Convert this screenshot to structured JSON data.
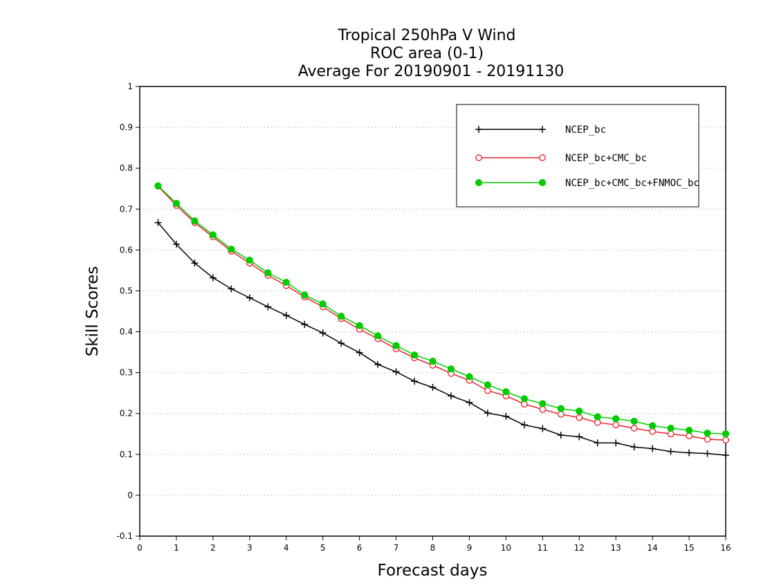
{
  "chart_data": {
    "type": "line",
    "title_lines": [
      "Tropical 250hPa V Wind",
      "ROC area (0-1)",
      "Average For 20190901 - 20191130"
    ],
    "xlabel": "Forecast days",
    "ylabel": "Skill Scores",
    "xlim": [
      0,
      16
    ],
    "ylim": [
      -0.1,
      1
    ],
    "x_ticks": [
      0,
      1,
      2,
      3,
      4,
      5,
      6,
      7,
      8,
      9,
      10,
      11,
      12,
      13,
      14,
      15,
      16
    ],
    "y_ticks": [
      -0.1,
      0,
      0.1,
      0.2,
      0.3,
      0.4,
      0.5,
      0.6,
      0.7,
      0.8,
      0.9,
      1
    ],
    "y_tick_labels": [
      "-0.1",
      "0",
      "0.1",
      "0.2",
      "0.3",
      "0.4",
      "0.5",
      "0.6",
      "0.7",
      "0.8",
      "0.9",
      "1"
    ],
    "grid": "horizontal dotted",
    "legend_position": "top-right",
    "x": [
      0.5,
      1,
      1.5,
      2,
      2.5,
      3,
      3.5,
      4,
      4.5,
      5,
      5.5,
      6,
      6.5,
      7,
      7.5,
      8,
      8.5,
      9,
      9.5,
      10,
      10.5,
      11,
      11.5,
      12,
      12.5,
      13,
      13.5,
      14,
      14.5,
      15,
      15.5,
      16
    ],
    "series": [
      {
        "name": "NCEP_bc",
        "color": "#000000",
        "marker": "plus",
        "values": [
          0.667,
          0.614,
          0.568,
          0.532,
          0.505,
          0.483,
          0.461,
          0.44,
          0.418,
          0.397,
          0.372,
          0.349,
          0.32,
          0.302,
          0.279,
          0.264,
          0.243,
          0.227,
          0.201,
          0.193,
          0.172,
          0.163,
          0.147,
          0.143,
          0.128,
          0.128,
          0.118,
          0.114,
          0.107,
          0.104,
          0.102,
          0.098
        ]
      },
      {
        "name": "NCEP_bc+CMC_bc",
        "color": "#e8202a",
        "marker": "open-circle",
        "values": [
          0.756,
          0.709,
          0.667,
          0.632,
          0.597,
          0.568,
          0.538,
          0.513,
          0.485,
          0.461,
          0.432,
          0.406,
          0.383,
          0.358,
          0.336,
          0.318,
          0.298,
          0.281,
          0.256,
          0.243,
          0.223,
          0.21,
          0.198,
          0.19,
          0.178,
          0.172,
          0.164,
          0.156,
          0.15,
          0.145,
          0.137,
          0.135
        ]
      },
      {
        "name": "NCEP_bc+CMC_bc+FNMOC_bc",
        "color": "#00cc00",
        "marker": "filled-circle",
        "values": [
          0.757,
          0.714,
          0.671,
          0.637,
          0.602,
          0.575,
          0.544,
          0.521,
          0.49,
          0.468,
          0.438,
          0.415,
          0.39,
          0.366,
          0.343,
          0.328,
          0.309,
          0.29,
          0.27,
          0.253,
          0.236,
          0.224,
          0.212,
          0.206,
          0.192,
          0.187,
          0.181,
          0.17,
          0.164,
          0.159,
          0.152,
          0.15
        ]
      }
    ]
  }
}
